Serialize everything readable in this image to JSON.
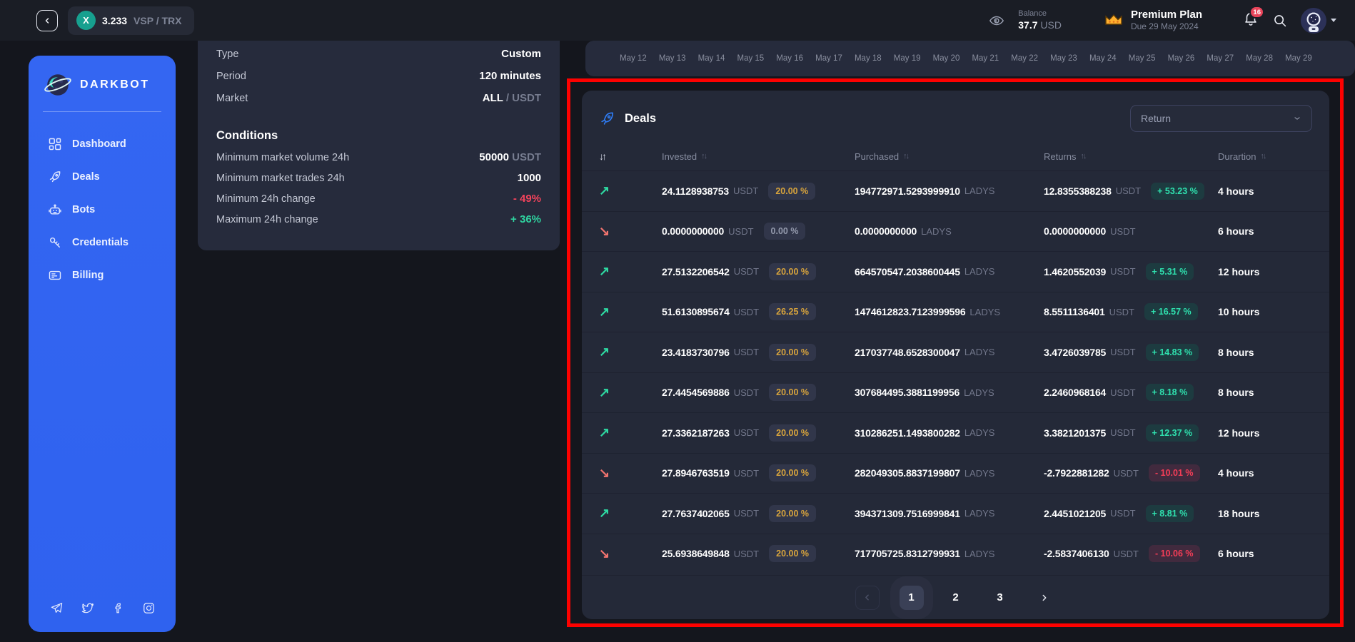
{
  "topbar": {
    "pair": {
      "icon_letter": "X",
      "price": "3.233",
      "symbols": "VSP / TRX"
    },
    "balance": {
      "label": "Balance",
      "value": "37.7",
      "currency": "USD"
    },
    "plan": {
      "title": "Premium Plan",
      "due": "Due 29 May 2024"
    },
    "notifications_count": "16"
  },
  "sidebar": {
    "logo": "DARKBOT",
    "items": [
      {
        "key": "dashboard",
        "label": "Dashboard"
      },
      {
        "key": "deals",
        "label": "Deals"
      },
      {
        "key": "bots",
        "label": "Bots"
      },
      {
        "key": "credentials",
        "label": "Credentials"
      },
      {
        "key": "billing",
        "label": "Billing"
      }
    ],
    "socials": [
      "telegram",
      "twitter",
      "facebook",
      "instagram"
    ]
  },
  "settings": {
    "rows": [
      {
        "label": "Type",
        "value": "Custom",
        "unit": ""
      },
      {
        "label": "Period",
        "value": "120 minutes",
        "unit": ""
      },
      {
        "label": "Market",
        "value": "ALL",
        "unit": " / USDT"
      }
    ],
    "conditions_title": "Conditions",
    "conditions": [
      {
        "label": "Minimum market volume 24h",
        "value": "50000",
        "unit": " USDT",
        "tone": ""
      },
      {
        "label": "Minimum market trades 24h",
        "value": "1000",
        "unit": "",
        "tone": ""
      },
      {
        "label": "Minimum 24h change",
        "value": "- 49%",
        "unit": "",
        "tone": "neg"
      },
      {
        "label": "Maximum 24h change",
        "value": "+ 36%",
        "unit": "",
        "tone": "pos"
      }
    ]
  },
  "chart": {
    "dates": [
      "May 12",
      "May 13",
      "May 14",
      "May 15",
      "May 16",
      "May 17",
      "May 18",
      "May 19",
      "May 20",
      "May 21",
      "May 22",
      "May 23",
      "May 24",
      "May 25",
      "May 26",
      "May 27",
      "May 28",
      "May 29"
    ]
  },
  "deals": {
    "title": "Deals",
    "filter_value": "Return",
    "columns": [
      "Invested",
      "Purchased",
      "Returns",
      "Durartion"
    ],
    "rows": [
      {
        "dir": "up",
        "invested": "24.1128938753",
        "invested_unit": "USDT",
        "pct": "20.00 %",
        "pct_tone": "amber",
        "purchased": "194772971.5293999910",
        "purchased_unit": "LADYS",
        "returns": "12.8355388238",
        "returns_unit": "USDT",
        "change": "+ 53.23 %",
        "change_tone": "pos",
        "duration": "4 hours"
      },
      {
        "dir": "down",
        "invested": "0.0000000000",
        "invested_unit": "USDT",
        "pct": "0.00 %",
        "pct_tone": "muted",
        "purchased": "0.0000000000",
        "purchased_unit": "LADYS",
        "returns": "0.0000000000",
        "returns_unit": "USDT",
        "change": "",
        "change_tone": "",
        "duration": "6 hours"
      },
      {
        "dir": "up",
        "invested": "27.5132206542",
        "invested_unit": "USDT",
        "pct": "20.00 %",
        "pct_tone": "amber",
        "purchased": "664570547.2038600445",
        "purchased_unit": "LADYS",
        "returns": "1.4620552039",
        "returns_unit": "USDT",
        "change": "+ 5.31 %",
        "change_tone": "pos",
        "duration": "12 hours"
      },
      {
        "dir": "up",
        "invested": "51.6130895674",
        "invested_unit": "USDT",
        "pct": "26.25 %",
        "pct_tone": "amber",
        "purchased": "1474612823.7123999596",
        "purchased_unit": "LADYS",
        "returns": "8.5511136401",
        "returns_unit": "USDT",
        "change": "+ 16.57 %",
        "change_tone": "pos",
        "duration": "10 hours"
      },
      {
        "dir": "up",
        "invested": "23.4183730796",
        "invested_unit": "USDT",
        "pct": "20.00 %",
        "pct_tone": "amber",
        "purchased": "217037748.6528300047",
        "purchased_unit": "LADYS",
        "returns": "3.4726039785",
        "returns_unit": "USDT",
        "change": "+ 14.83 %",
        "change_tone": "pos",
        "duration": "8 hours"
      },
      {
        "dir": "up",
        "invested": "27.4454569886",
        "invested_unit": "USDT",
        "pct": "20.00 %",
        "pct_tone": "amber",
        "purchased": "307684495.3881199956",
        "purchased_unit": "LADYS",
        "returns": "2.2460968164",
        "returns_unit": "USDT",
        "change": "+ 8.18 %",
        "change_tone": "pos",
        "duration": "8 hours"
      },
      {
        "dir": "up",
        "invested": "27.3362187263",
        "invested_unit": "USDT",
        "pct": "20.00 %",
        "pct_tone": "amber",
        "purchased": "310286251.1493800282",
        "purchased_unit": "LADYS",
        "returns": "3.3821201375",
        "returns_unit": "USDT",
        "change": "+ 12.37 %",
        "change_tone": "pos",
        "duration": "12 hours"
      },
      {
        "dir": "down",
        "invested": "27.8946763519",
        "invested_unit": "USDT",
        "pct": "20.00 %",
        "pct_tone": "amber",
        "purchased": "282049305.8837199807",
        "purchased_unit": "LADYS",
        "returns": "-2.7922881282",
        "returns_unit": "USDT",
        "change": "- 10.01 %",
        "change_tone": "neg",
        "duration": "4 hours"
      },
      {
        "dir": "up",
        "invested": "27.7637402065",
        "invested_unit": "USDT",
        "pct": "20.00 %",
        "pct_tone": "amber",
        "purchased": "394371309.7516999841",
        "purchased_unit": "LADYS",
        "returns": "2.4451021205",
        "returns_unit": "USDT",
        "change": "+ 8.81 %",
        "change_tone": "pos",
        "duration": "18 hours"
      },
      {
        "dir": "down",
        "invested": "25.6938649848",
        "invested_unit": "USDT",
        "pct": "20.00 %",
        "pct_tone": "amber",
        "purchased": "717705725.8312799931",
        "purchased_unit": "LADYS",
        "returns": "-2.5837406130",
        "returns_unit": "USDT",
        "change": "- 10.06 %",
        "change_tone": "neg",
        "duration": "6 hours"
      }
    ],
    "pagination": {
      "pages": [
        "1",
        "2",
        "3"
      ],
      "active_index": 0
    }
  }
}
